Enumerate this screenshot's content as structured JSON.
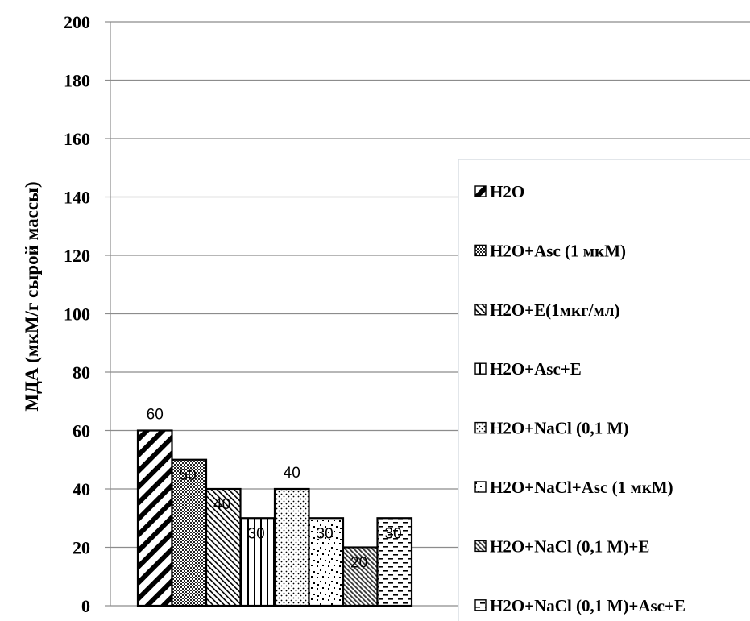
{
  "chart_data": {
    "type": "bar",
    "title": "",
    "xlabel": "",
    "ylabel": "МДА (мкМ/г сырой массы)",
    "ylim": [
      0,
      200
    ],
    "yticks": [
      0,
      20,
      40,
      60,
      80,
      100,
      120,
      140,
      160,
      180,
      200
    ],
    "grid": true,
    "legend_position": "right",
    "series": [
      {
        "name": "H2O",
        "value": 60,
        "pattern": "diag-wide-down"
      },
      {
        "name": "H2O+Asc (1 мкМ)",
        "value": 50,
        "pattern": "crosshatch-dense"
      },
      {
        "name": "H2O+E(1мкг/мл)",
        "value": 40,
        "pattern": "diag-thin-up"
      },
      {
        "name": "H2O+Asc+E",
        "value": 30,
        "pattern": "vertical"
      },
      {
        "name": "H2O+NaCl (0,1 M)",
        "value": 40,
        "pattern": "dots"
      },
      {
        "name": "H2O+NaCl+Asc (1 мкМ)",
        "value": 30,
        "pattern": "confetti"
      },
      {
        "name": "H2O+NaCl (0,1 M)+E",
        "value": 20,
        "pattern": "diag-dense-up"
      },
      {
        "name": "H2O+NaCl (0,1 M)+Asc+E",
        "value": 30,
        "pattern": "dashes"
      }
    ]
  }
}
